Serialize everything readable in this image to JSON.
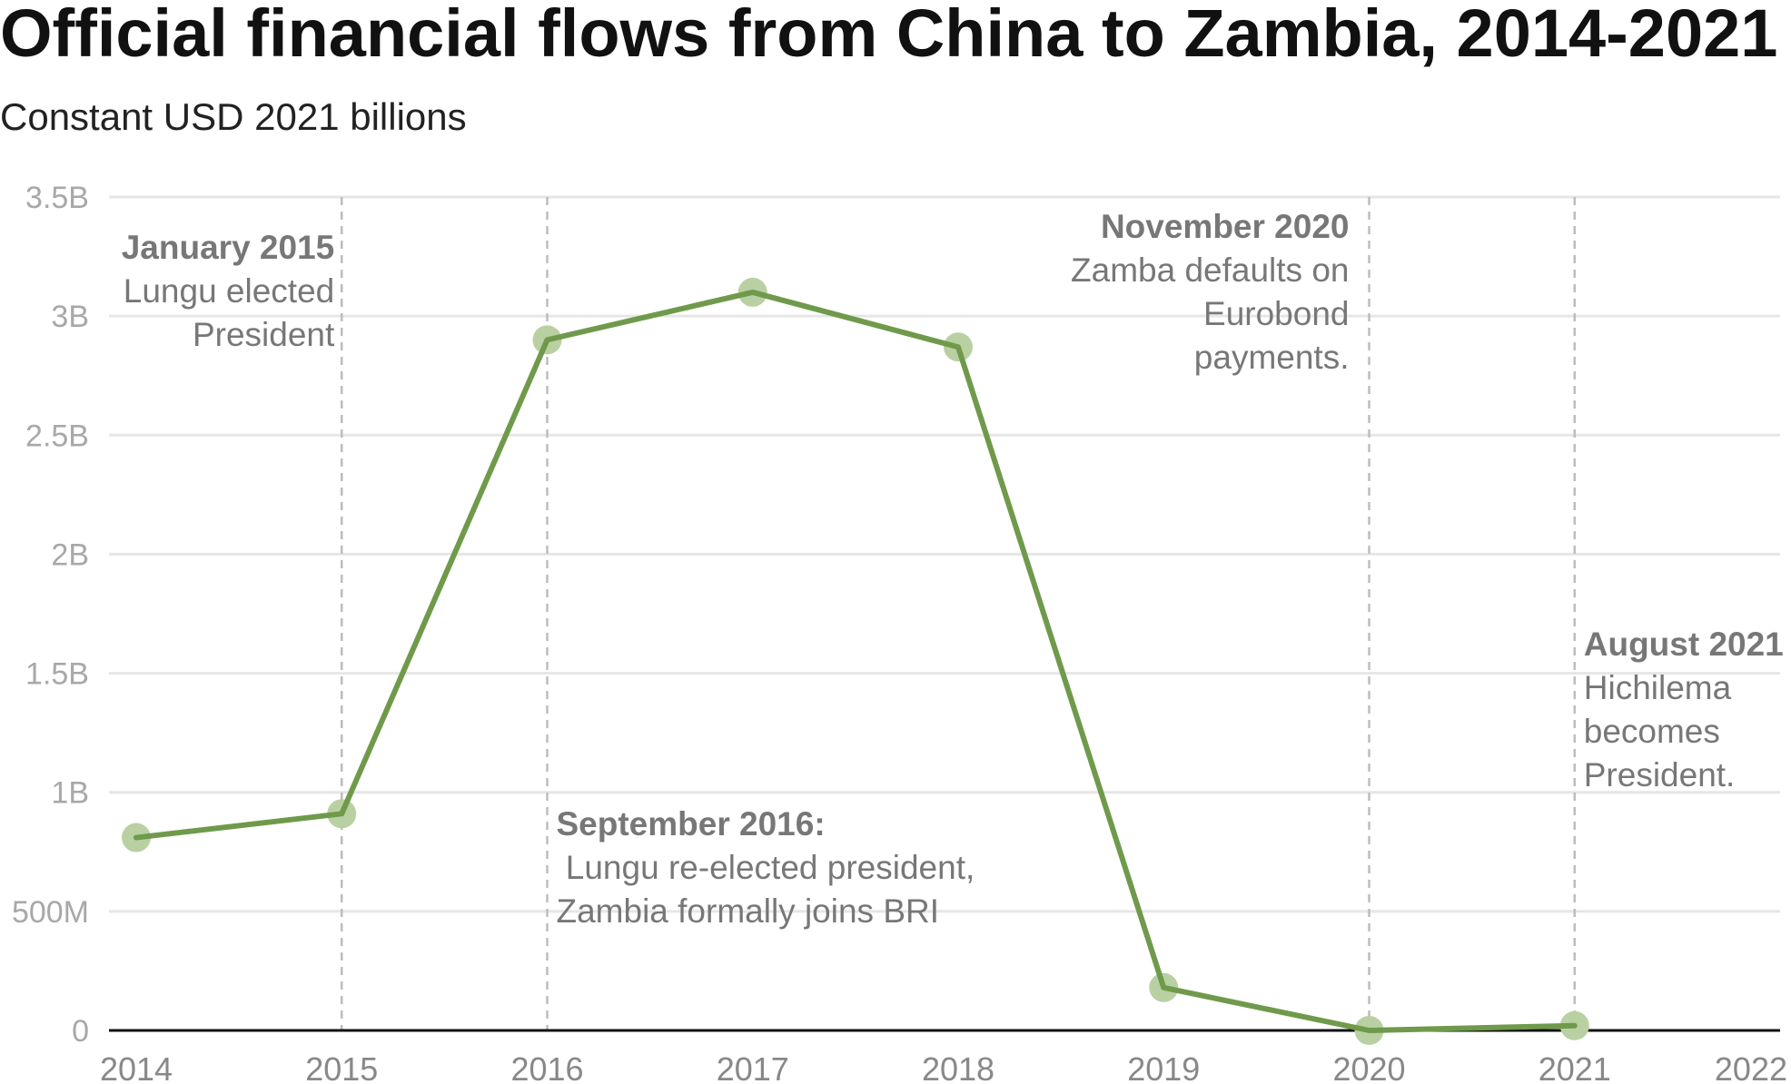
{
  "chart_data": {
    "type": "line",
    "title": "Official financial flows from China to Zambia, 2014-2021",
    "subtitle": "Constant USD 2021 billions",
    "xlabel": "",
    "ylabel": "",
    "x_ticks": [
      "2014",
      "2015",
      "2016",
      "2017",
      "2018",
      "2019",
      "2020",
      "2021",
      "2022"
    ],
    "y_ticks": [
      {
        "value": 0,
        "label": "0"
      },
      {
        "value": 0.5,
        "label": "500M"
      },
      {
        "value": 1,
        "label": "1B"
      },
      {
        "value": 1.5,
        "label": "1.5B"
      },
      {
        "value": 2,
        "label": "2B"
      },
      {
        "value": 2.5,
        "label": "2.5B"
      },
      {
        "value": 3,
        "label": "3B"
      },
      {
        "value": 3.5,
        "label": "3.5B"
      }
    ],
    "xlim": [
      2014,
      2022
    ],
    "ylim": [
      0,
      3.5
    ],
    "grid": true,
    "series": [
      {
        "x": [
          2014,
          2015,
          2016,
          2017,
          2018,
          2019,
          2020,
          2021
        ],
        "values": [
          0.81,
          0.91,
          2.9,
          3.1,
          2.87,
          0.18,
          0.0,
          0.02
        ]
      }
    ],
    "annotations": [
      {
        "x": 2015,
        "lines": [
          "January 2015",
          "Lungu elected",
          "President"
        ]
      },
      {
        "x": 2016,
        "lines": [
          "September 2016:",
          " Lungu re-elected president,",
          "Zambia formally joins BRI"
        ]
      },
      {
        "x": 2020,
        "lines": [
          "November 2020",
          "Zamba defaults on",
          "Eurobond",
          "payments."
        ]
      },
      {
        "x": 2021,
        "lines": [
          "August 2021",
          "Hichilema",
          "becomes",
          "President."
        ]
      }
    ],
    "colors": {
      "line": "#6f9a4b",
      "marker": "#b9d0a3",
      "grid": "#e6e6e6",
      "reference_line": "#bdbdbd",
      "baseline": "#111111"
    }
  }
}
